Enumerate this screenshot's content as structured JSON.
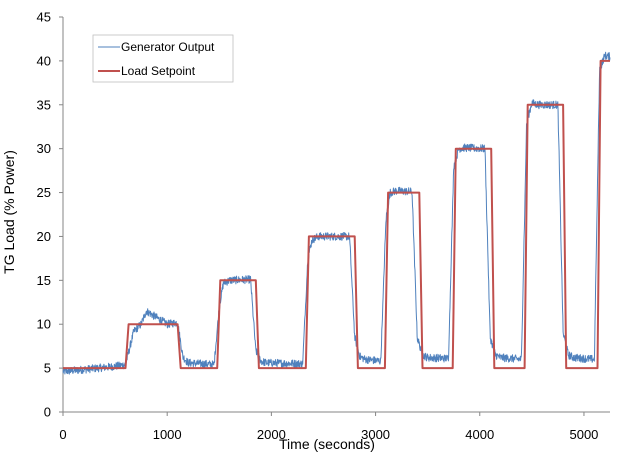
{
  "chart_data": {
    "type": "line",
    "title": "",
    "xlabel": "Time (seconds)",
    "ylabel": "TG Load (% Power)",
    "xlim": [
      0,
      5250
    ],
    "ylim": [
      0,
      45
    ],
    "xticks": [
      0,
      1000,
      2000,
      3000,
      4000,
      5000
    ],
    "yticks": [
      0,
      5,
      10,
      15,
      20,
      25,
      30,
      35,
      40,
      45
    ],
    "grid": false,
    "legend_position": "top-left",
    "colors": {
      "generator": "#4f81bd",
      "setpoint": "#c0504d"
    },
    "series": [
      {
        "name": "Generator Output",
        "kind": "noisy-step-response",
        "x": [
          0,
          500,
          600,
          680,
          750,
          800,
          1000,
          1100,
          1150,
          1200,
          1450,
          1500,
          1540,
          1600,
          1800,
          1850,
          1900,
          1950,
          2300,
          2350,
          2390,
          2450,
          2750,
          2800,
          2850,
          2900,
          3050,
          3100,
          3140,
          3200,
          3350,
          3400,
          3450,
          3500,
          3700,
          3750,
          3800,
          3850,
          4050,
          4100,
          4150,
          4200,
          4400,
          4450,
          4500,
          4560,
          4750,
          4800,
          4850,
          4900,
          5100,
          5150,
          5200,
          5250
        ],
        "y": [
          4.6,
          5.2,
          5.4,
          9.2,
          10.0,
          11.5,
          10.0,
          10.2,
          6.3,
          5.6,
          5.4,
          12.0,
          14.7,
          15.0,
          15.1,
          7.0,
          5.8,
          5.6,
          5.5,
          17.5,
          19.6,
          20.0,
          20.0,
          8.5,
          6.3,
          6.0,
          5.8,
          22.0,
          25.0,
          25.2,
          25.1,
          8.5,
          6.5,
          6.2,
          6.1,
          28.0,
          30.0,
          30.1,
          30.0,
          8.5,
          6.5,
          6.2,
          6.0,
          33.0,
          35.2,
          35.0,
          35.0,
          9.0,
          6.5,
          6.2,
          6.0,
          39.0,
          40.6,
          40.5
        ]
      },
      {
        "name": "Load Setpoint",
        "kind": "trapezoid-steps",
        "x": [
          0,
          600,
          630,
          1100,
          1130,
          1480,
          1510,
          1850,
          1880,
          2330,
          2360,
          2800,
          2830,
          3090,
          3120,
          3420,
          3450,
          3740,
          3770,
          4110,
          4140,
          4430,
          4460,
          4800,
          4830,
          5130,
          5160,
          5250
        ],
        "y": [
          5,
          5,
          10,
          10,
          5,
          5,
          15,
          15,
          5,
          5,
          20,
          20,
          5,
          5,
          25,
          25,
          5,
          5,
          30,
          30,
          5,
          5,
          35,
          35,
          5,
          5,
          40,
          40
        ]
      }
    ]
  }
}
